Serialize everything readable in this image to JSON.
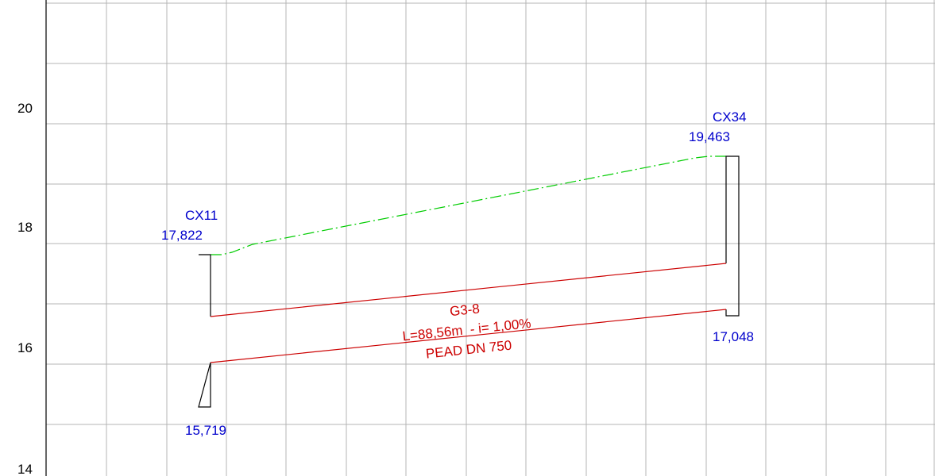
{
  "colors": {
    "grid": "#b4b4b4",
    "axis": "#000000",
    "terrain": "#00cc00",
    "pipe": "#cc0000",
    "manhole": "#000000",
    "label": "#0000cc"
  },
  "y_axis_labels": [
    "20",
    "18",
    "16",
    "14"
  ],
  "manholes": {
    "left": {
      "name": "CX11",
      "top_elev": "17,822",
      "bottom_elev": "15,719"
    },
    "right": {
      "name": "CX34",
      "top_elev": "19,463",
      "bottom_elev": "17,048"
    }
  },
  "pipe": {
    "id": "G3-8",
    "length_slope": "L=88,56m  - i= 1,00%",
    "material": "PEAD DN 750"
  }
}
